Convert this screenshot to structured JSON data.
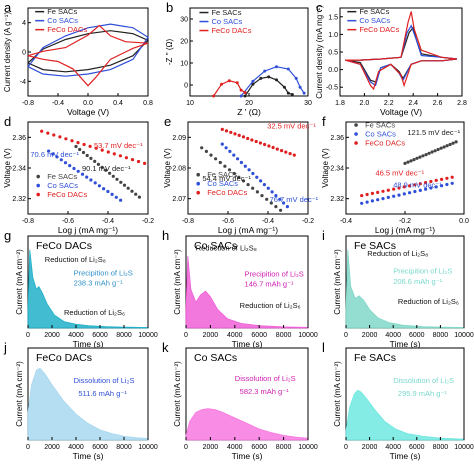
{
  "chart_data": [
    {
      "panel": "a",
      "type": "line",
      "xlabel": "Voltage (V)",
      "ylabel": "Current density (A g⁻¹)",
      "xlim": [
        -0.8,
        0.8
      ],
      "ylim": [
        -6,
        6
      ],
      "xticks": [
        "-0.8",
        "-0.4",
        "0.0",
        "0.4",
        "0.8"
      ],
      "yticks": [
        "-4",
        "0",
        "4"
      ],
      "legend": "top-left",
      "series": [
        {
          "name": "Fe SACs",
          "color": "#222222",
          "x": [
            -0.8,
            -0.6,
            -0.3,
            0,
            0.3,
            0.6,
            0.8,
            0.6,
            0.3,
            0,
            -0.3,
            -0.6,
            -0.8
          ],
          "y": [
            -1.5,
            -2.4,
            -2.7,
            -2.4,
            -1.8,
            -0.5,
            1.6,
            2.5,
            2.9,
            2.5,
            1.7,
            0.4,
            -1.5
          ]
        },
        {
          "name": "Co SACs",
          "color": "#2f4fd8",
          "x": [
            -0.8,
            -0.6,
            -0.3,
            0,
            0.3,
            0.6,
            0.8,
            0.6,
            0.3,
            0,
            -0.3,
            -0.6,
            -0.8
          ],
          "y": [
            -2.0,
            -3.0,
            -3.3,
            -3.0,
            -2.4,
            -1.0,
            2.0,
            3.3,
            3.8,
            3.3,
            2.2,
            0.6,
            -2.0
          ]
        },
        {
          "name": "FeCo DACs",
          "color": "#e02020",
          "x": [
            -0.8,
            -0.6,
            -0.4,
            -0.2,
            0,
            0.1,
            0.3,
            0.6,
            0.8,
            0.5,
            0.3,
            0.15,
            0,
            -0.3,
            -0.6,
            -0.8
          ],
          "y": [
            -0.5,
            -1.0,
            -1.3,
            -2.3,
            -4.6,
            -3.5,
            -1.0,
            0.5,
            1.2,
            1.4,
            2.2,
            3.6,
            2.3,
            0.6,
            0.1,
            -0.5
          ]
        }
      ]
    },
    {
      "panel": "b",
      "type": "line",
      "xlabel": "Z ' (Ω)",
      "ylabel": "-Z '' (Ω)",
      "xlim": [
        0,
        30
      ],
      "ylim": [
        0,
        30
      ],
      "xticks": [
        "10",
        "20",
        "30"
      ],
      "yticks": [
        "0",
        "10",
        "20",
        "30"
      ],
      "legend": "top-left",
      "series": [
        {
          "name": "Fe SACs",
          "color": "#222222",
          "x": [
            14,
            16,
            18,
            20,
            22,
            24,
            25,
            26
          ],
          "y": [
            0,
            4,
            6,
            6.5,
            5.5,
            3,
            1,
            0.5
          ]
        },
        {
          "name": "Co SACs",
          "color": "#2f4fd8",
          "x": [
            13,
            16,
            19,
            22,
            25,
            27,
            28,
            29
          ],
          "y": [
            0,
            5,
            8.5,
            10,
            9.2,
            6,
            3,
            1
          ]
        },
        {
          "name": "FeCo DACs",
          "color": "#e02020",
          "x": [
            6,
            8,
            10,
            12,
            13,
            14
          ],
          "y": [
            0,
            4,
            5.2,
            4.5,
            2,
            1.2
          ]
        }
      ]
    },
    {
      "panel": "c",
      "type": "line",
      "xlabel": "Voltage (V)",
      "ylabel": "Current density (mA mg⁻¹)",
      "xlim": [
        1.7,
        2.9
      ],
      "ylim": [
        -1.0,
        1.5
      ],
      "xticks": [
        "1.8",
        "2.0",
        "2.2",
        "2.4",
        "2.6",
        "2.8"
      ],
      "yticks": [
        "-0.5",
        "0.0",
        "0.5",
        "1.0",
        "1.5"
      ],
      "legend": "top-left",
      "series": [
        {
          "name": "Fe SACs",
          "color": "#222222",
          "x": [
            1.75,
            1.9,
            2.0,
            2.05,
            2.1,
            2.2,
            2.28,
            2.32,
            2.4,
            2.5,
            2.7,
            2.85,
            2.7,
            2.5,
            2.45,
            2.42,
            2.38,
            2.3,
            2.1,
            1.9,
            1.75
          ],
          "y": [
            0.02,
            -0.05,
            -0.55,
            -0.6,
            -0.2,
            -0.1,
            -0.3,
            -0.5,
            -0.1,
            0,
            0,
            0.05,
            0.1,
            0.2,
            0.6,
            0.95,
            0.8,
            0.1,
            0.05,
            0.02,
            0.02
          ]
        },
        {
          "name": "Co SACs",
          "color": "#2f4fd8",
          "x": [
            1.75,
            1.9,
            2.0,
            2.05,
            2.1,
            2.2,
            2.28,
            2.32,
            2.4,
            2.5,
            2.7,
            2.85,
            2.7,
            2.5,
            2.45,
            2.4,
            2.36,
            2.3,
            2.1,
            1.9,
            1.75
          ],
          "y": [
            0.02,
            -0.1,
            -0.6,
            -0.7,
            -0.2,
            -0.1,
            -0.35,
            -0.55,
            -0.1,
            0,
            0,
            0.05,
            0.1,
            0.15,
            0.6,
            1.0,
            0.8,
            0.1,
            0.05,
            0.02,
            0.02
          ]
        },
        {
          "name": "FeCo DACs",
          "color": "#e02020",
          "x": [
            1.75,
            1.9,
            2.0,
            2.03,
            2.08,
            2.2,
            2.3,
            2.33,
            2.4,
            2.5,
            2.7,
            2.85,
            2.7,
            2.5,
            2.43,
            2.4,
            2.37,
            2.3,
            2.1,
            1.9,
            1.75
          ],
          "y": [
            0.02,
            -0.1,
            -0.7,
            -0.8,
            -0.3,
            -0.1,
            -0.4,
            -0.7,
            -0.1,
            0,
            0,
            0.05,
            0.1,
            0.3,
            0.9,
            1.4,
            1.1,
            0.1,
            0.05,
            0.02,
            0.02
          ]
        }
      ]
    },
    {
      "panel": "d",
      "type": "scatter",
      "xlabel": "Log j (mA mg⁻¹)",
      "ylabel": "Voltage (V)",
      "xlim": [
        -0.8,
        -0.1
      ],
      "ylim": [
        2.31,
        2.37
      ],
      "xticks": [
        "-0.8",
        "-0.6",
        "-0.4",
        "-0.2"
      ],
      "yticks": [
        "2.32",
        "2.34",
        "2.36"
      ],
      "legend": "bottom-left",
      "annotations": [
        {
          "text": "53.7 mV dec⁻¹",
          "color": "#e02020"
        },
        {
          "text": "70.6 mV dec⁻¹",
          "color": "#2f4fd8"
        },
        {
          "text": "90.1 mV dec⁻¹",
          "color": "#222222"
        }
      ],
      "series": [
        {
          "name": "Fe SACs",
          "color": "#444444",
          "x": [
            -0.52,
            -0.15
          ],
          "y": [
            2.354,
            2.321
          ]
        },
        {
          "name": "Co SACs",
          "color": "#2f4fd8",
          "x": [
            -0.68,
            -0.26
          ],
          "y": [
            2.351,
            2.319
          ]
        },
        {
          "name": "FeCo DACs",
          "color": "#e02020",
          "x": [
            -0.72,
            -0.12
          ],
          "y": [
            2.364,
            2.343
          ]
        }
      ]
    },
    {
      "panel": "e",
      "type": "scatter",
      "xlabel": "Log j (mA mg⁻¹)",
      "ylabel": "Voltage (V)",
      "xlim": [
        -0.8,
        -0.1
      ],
      "ylim": [
        2.065,
        2.09
      ],
      "xticks": [
        "-0.8",
        "-0.6",
        "-0.4",
        "-0.2"
      ],
      "yticks": [
        "2.07",
        "2.08",
        "2.09"
      ],
      "legend": "bottom-left",
      "annotations": [
        {
          "text": "32.5 mV dec⁻¹",
          "color": "#e02020"
        },
        {
          "text": "54.4 mV dec⁻¹",
          "color": "#222222"
        },
        {
          "text": "76.7 mV dec⁻¹",
          "color": "#2f4fd8"
        }
      ],
      "series": [
        {
          "name": "Fe SACs",
          "color": "#444444",
          "x": [
            -0.72,
            -0.26
          ],
          "y": [
            2.083,
            2.066
          ]
        },
        {
          "name": "Co SACs",
          "color": "#2f4fd8",
          "x": [
            -0.6,
            -0.22
          ],
          "y": [
            2.084,
            2.067
          ]
        },
        {
          "name": "FeCo DACs",
          "color": "#e02020",
          "x": [
            -0.6,
            -0.18
          ],
          "y": [
            2.088,
            2.081
          ]
        }
      ]
    },
    {
      "panel": "f",
      "type": "scatter",
      "xlabel": "Log j (mA mg⁻¹)",
      "ylabel": "Voltage (V)",
      "xlim": [
        -0.5,
        0.1
      ],
      "ylim": [
        2.31,
        2.37
      ],
      "xticks": [
        "-0.4",
        "-0.2",
        "0.0"
      ],
      "yticks": [
        "2.32",
        "2.34",
        "2.36"
      ],
      "legend": "top-left",
      "annotations": [
        {
          "text": "121.5 mV dec⁻¹",
          "color": "#222222"
        },
        {
          "text": "46.5 mV dec⁻¹",
          "color": "#e02020"
        },
        {
          "text": "48.9 mV dec⁻¹",
          "color": "#2f4fd8"
        }
      ],
      "series": [
        {
          "name": "Fe SACs",
          "color": "#444444",
          "x": [
            -0.2,
            0.06
          ],
          "y": [
            2.343,
            2.357
          ]
        },
        {
          "name": "Co SACs",
          "color": "#2f4fd8",
          "x": [
            -0.42,
            0.04
          ],
          "y": [
            2.317,
            2.33
          ]
        },
        {
          "name": "FeCo DACs",
          "color": "#e02020",
          "x": [
            -0.42,
            0.04
          ],
          "y": [
            2.322,
            2.334
          ]
        }
      ]
    },
    {
      "panel": "g",
      "type": "area",
      "title": "FeCo DACs",
      "xlabel": "Time (s)",
      "ylabel": "Current (mA cm⁻²)",
      "xlim": [
        0,
        10000
      ],
      "ylim": [
        0,
        1
      ],
      "xticks": [
        "0",
        "2000",
        "4000",
        "6000",
        "8000",
        "10000"
      ],
      "annotations": [
        {
          "text": "Reduction of Li₂S₈",
          "color": "#111111"
        },
        {
          "text": "Precipition of Li₂S",
          "color": "#3090c8"
        },
        {
          "text": "238.3 mAh g⁻¹",
          "color": "#3090c8"
        },
        {
          "text": "Reduction of Li₂S₆",
          "color": "#111111"
        }
      ],
      "series": [
        {
          "color": "#20b0c8",
          "x": [
            0,
            150,
            400,
            700,
            900,
            1200,
            1600,
            2200,
            3000,
            4000,
            5000,
            6500,
            8000,
            10000
          ],
          "y": [
            0.2,
            0.85,
            0.55,
            0.42,
            0.45,
            0.38,
            0.26,
            0.14,
            0.07,
            0.04,
            0.025,
            0.015,
            0.01,
            0.005
          ]
        }
      ]
    },
    {
      "panel": "h",
      "type": "area",
      "title": "Co SACs",
      "xlabel": "Time (s)",
      "ylabel": "Current (mA cm⁻²)",
      "xlim": [
        0,
        10000
      ],
      "ylim": [
        0,
        1
      ],
      "xticks": [
        "0",
        "2000",
        "4000",
        "6000",
        "8000",
        "10000"
      ],
      "annotations": [
        {
          "text": "Reduction of Li₂S₈",
          "color": "#111111"
        },
        {
          "text": "Precipition of Li₂S",
          "color": "#d020b0"
        },
        {
          "text": "146.7 mAh g⁻¹",
          "color": "#d020b0"
        },
        {
          "text": "Reduction of Li₂S₆",
          "color": "#111111"
        }
      ],
      "series": [
        {
          "color": "#f060d8",
          "x": [
            0,
            150,
            400,
            800,
            1200,
            1600,
            2000,
            2600,
            3400,
            4500,
            6000,
            8000,
            10000
          ],
          "y": [
            0.2,
            0.78,
            0.42,
            0.28,
            0.36,
            0.4,
            0.34,
            0.2,
            0.1,
            0.05,
            0.025,
            0.012,
            0.006
          ]
        }
      ]
    },
    {
      "panel": "i",
      "type": "area",
      "title": "Fe SACs",
      "xlabel": "Time (s)",
      "ylabel": "Current (mA cm⁻²)",
      "xlim": [
        0,
        10000
      ],
      "ylim": [
        0,
        1
      ],
      "xticks": [
        "0",
        "2000",
        "4000",
        "6000",
        "8000",
        "10000"
      ],
      "annotations": [
        {
          "text": "Reduction of Li₂S₈",
          "color": "#111111"
        },
        {
          "text": "Precipition of Li₂S",
          "color": "#7ad8cc"
        },
        {
          "text": "206.6 mAh g⁻¹",
          "color": "#7ad8cc"
        },
        {
          "text": "Reduction of Li₂S₆",
          "color": "#111111"
        }
      ],
      "series": [
        {
          "color": "#80d8c8",
          "x": [
            0,
            150,
            400,
            800,
            1100,
            1500,
            2000,
            2700,
            3600,
            4800,
            6500,
            8000,
            10000
          ],
          "y": [
            0.2,
            0.85,
            0.45,
            0.32,
            0.35,
            0.3,
            0.2,
            0.11,
            0.06,
            0.03,
            0.015,
            0.01,
            0.005
          ]
        }
      ]
    },
    {
      "panel": "j",
      "type": "area",
      "title": "FeCo DACs",
      "xlabel": "Time (s)",
      "ylabel": "Current (mA cm⁻²)",
      "xlim": [
        0,
        10000
      ],
      "ylim": [
        0,
        1
      ],
      "xticks": [
        "0",
        "2000",
        "4000",
        "6000",
        "8000",
        "10000"
      ],
      "annotations": [
        {
          "text": "Dissolution of Li₂S",
          "color": "#2f4fd8"
        },
        {
          "text": "511.6 mAh g⁻¹",
          "color": "#2f4fd8"
        }
      ],
      "series": [
        {
          "color": "#a8d8f0",
          "x": [
            0,
            300,
            700,
            1000,
            1400,
            2000,
            3000,
            4000,
            5000,
            6000,
            7000,
            8000,
            9000,
            10000
          ],
          "y": [
            0.3,
            0.6,
            0.76,
            0.78,
            0.72,
            0.6,
            0.42,
            0.28,
            0.18,
            0.11,
            0.07,
            0.04,
            0.025,
            0.015
          ]
        }
      ]
    },
    {
      "panel": "k",
      "type": "area",
      "title": "Co SACs",
      "xlabel": "Time (s)",
      "ylabel": "Current (mA cm⁻²)",
      "xlim": [
        0,
        10000
      ],
      "ylim": [
        0,
        1
      ],
      "xticks": [
        "0",
        "2000",
        "4000",
        "6000",
        "8000",
        "10000"
      ],
      "annotations": [
        {
          "text": "Dissolution of Li₂S",
          "color": "#d020b0"
        },
        {
          "text": "582.3 mAh g⁻¹",
          "color": "#d020b0"
        }
      ],
      "series": [
        {
          "color": "#f878e0",
          "x": [
            0,
            300,
            800,
            1300,
            1800,
            2400,
            3000,
            4000,
            5000,
            6000,
            7000,
            8000,
            9000,
            10000
          ],
          "y": [
            0.05,
            0.2,
            0.3,
            0.33,
            0.34,
            0.33,
            0.3,
            0.24,
            0.18,
            0.12,
            0.08,
            0.05,
            0.03,
            0.02
          ]
        }
      ]
    },
    {
      "panel": "l",
      "type": "area",
      "title": "Fe SACs",
      "xlabel": "Time (s)",
      "ylabel": "Current (mA cm⁻²)",
      "xlim": [
        0,
        10000
      ],
      "ylim": [
        0,
        1
      ],
      "xticks": [
        "0",
        "2000",
        "4000",
        "6000",
        "8000",
        "10000"
      ],
      "annotations": [
        {
          "text": "Dissolution of Li₂S",
          "color": "#7ad8cc"
        },
        {
          "text": "295.9 mAh g⁻¹",
          "color": "#7ad8cc"
        }
      ],
      "series": [
        {
          "color": "#70e8e0",
          "x": [
            0,
            300,
            700,
            1000,
            1300,
            1800,
            2500,
            3300,
            4200,
            5200,
            6500,
            8000,
            10000
          ],
          "y": [
            0.1,
            0.35,
            0.5,
            0.54,
            0.52,
            0.44,
            0.32,
            0.2,
            0.12,
            0.07,
            0.04,
            0.02,
            0.01
          ]
        }
      ]
    }
  ]
}
